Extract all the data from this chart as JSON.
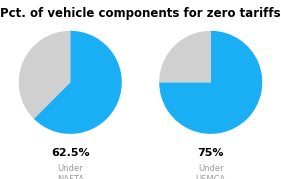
{
  "title": "Pct. of vehicle components for zero tariffs",
  "title_fontsize": 8.5,
  "title_fontweight": "bold",
  "pie1": {
    "values": [
      62.5,
      37.5
    ],
    "colors": [
      "#1aaef5",
      "#d0d0d0"
    ],
    "label_pct": "62.5%",
    "label_sub1": "Under",
    "label_sub2": "NAFTA",
    "start_angle": 90
  },
  "pie2": {
    "values": [
      75.0,
      25.0
    ],
    "colors": [
      "#1aaef5",
      "#d0d0d0"
    ],
    "label_pct": "75%",
    "label_sub1": "Under",
    "label_sub2": "USMCA",
    "start_angle": 90
  },
  "pct_fontsize": 8,
  "pct_fontweight": "bold",
  "sub_fontsize": 6,
  "sub_color": "#999999",
  "background_color": "#ffffff"
}
